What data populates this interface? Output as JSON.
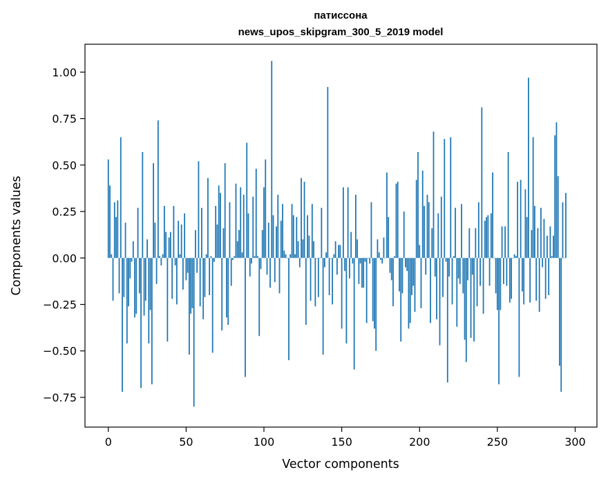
{
  "chart_data": {
    "type": "bar",
    "title": "патиссона",
    "subtitle": "news_upos_skipgram_300_5_2019 model",
    "xlabel": "Vector components",
    "ylabel": "Components values",
    "xlim": [
      -15,
      314
    ],
    "ylim": [
      -0.91,
      1.15
    ],
    "xticks": [
      0,
      50,
      100,
      150,
      200,
      250,
      300
    ],
    "xtick_labels": [
      "0",
      "50",
      "100",
      "150",
      "200",
      "250",
      "300"
    ],
    "yticks": [
      -0.75,
      -0.5,
      -0.25,
      0.0,
      0.25,
      0.5,
      0.75,
      1.0
    ],
    "ytick_labels": [
      "−0.75",
      "−0.50",
      "−0.25",
      "0.00",
      "0.25",
      "0.50",
      "0.75",
      "1.00"
    ],
    "grid": false,
    "bar_color": "#1f77b4",
    "values": [
      0.53,
      0.39,
      0.02,
      -0.23,
      0.3,
      0.22,
      0.31,
      -0.19,
      0.65,
      -0.72,
      -0.21,
      0.19,
      -0.46,
      -0.26,
      -0.11,
      -0.02,
      0.09,
      -0.32,
      -0.3,
      0.27,
      -0.19,
      -0.7,
      0.57,
      -0.31,
      -0.23,
      0.1,
      -0.46,
      -0.28,
      -0.68,
      0.51,
      0.19,
      -0.14,
      0.74,
      0.01,
      -0.04,
      0.02,
      0.28,
      0.14,
      -0.45,
      0.11,
      0.14,
      -0.22,
      0.28,
      -0.04,
      -0.25,
      0.2,
      0.02,
      0.18,
      -0.17,
      0.24,
      -0.12,
      -0.08,
      -0.52,
      -0.3,
      -0.27,
      -0.8,
      0.15,
      -0.08,
      0.52,
      -0.26,
      0.27,
      -0.33,
      -0.21,
      0.02,
      0.43,
      -0.2,
      0.01,
      -0.51,
      -0.02,
      0.28,
      0.18,
      0.39,
      0.35,
      -0.39,
      0.16,
      0.51,
      -0.32,
      -0.36,
      0.3,
      -0.15,
      -0.01,
      0.01,
      0.4,
      0.09,
      0.15,
      0.38,
      0.03,
      0.34,
      -0.64,
      0.62,
      0.24,
      -0.1,
      -0.03,
      0.33,
      0.01,
      0.48,
      0.01,
      -0.42,
      -0.06,
      0.15,
      0.38,
      0.53,
      -0.09,
      0.19,
      -0.16,
      1.06,
      0.23,
      -0.13,
      0.17,
      0.34,
      -0.19,
      0.2,
      0.29,
      0.04,
      0.02,
      0.0,
      -0.55,
      0.02,
      0.29,
      0.23,
      0.02,
      0.22,
      0.09,
      -0.05,
      0.43,
      0.1,
      0.41,
      -0.36,
      0.23,
      0.12,
      -0.23,
      0.29,
      0.09,
      -0.26,
      0.0,
      -0.21,
      0.0,
      0.27,
      -0.52,
      -0.05,
      0.03,
      0.92,
      -0.2,
      0.0,
      -0.25,
      0.02,
      0.09,
      -0.09,
      0.07,
      0.07,
      -0.38,
      0.38,
      -0.07,
      -0.46,
      0.38,
      -0.11,
      0.14,
      -0.03,
      -0.6,
      0.34,
      0.1,
      -0.14,
      -0.03,
      -0.16,
      -0.16,
      -0.02,
      -0.35,
      0.0,
      -0.03,
      0.3,
      -0.34,
      -0.38,
      -0.5,
      0.1,
      0.03,
      -0.01,
      -0.03,
      0.11,
      0.0,
      0.46,
      0.22,
      -0.08,
      -0.12,
      -0.26,
      0.01,
      0.4,
      0.41,
      -0.18,
      -0.45,
      -0.19,
      0.25,
      -0.05,
      -0.07,
      -0.38,
      -0.35,
      -0.2,
      -0.15,
      -0.29,
      0.42,
      0.57,
      0.07,
      -0.27,
      0.47,
      0.28,
      -0.09,
      0.34,
      0.3,
      -0.35,
      0.16,
      0.68,
      -0.1,
      -0.33,
      0.24,
      -0.47,
      0.33,
      -0.21,
      0.64,
      -0.02,
      -0.67,
      -0.1,
      0.65,
      -0.25,
      0.01,
      0.27,
      -0.37,
      -0.11,
      -0.14,
      0.29,
      -0.19,
      -0.44,
      -0.56,
      -0.12,
      0.16,
      -0.43,
      -0.09,
      -0.45,
      0.16,
      -0.26,
      0.3,
      -0.15,
      0.81,
      -0.3,
      0.2,
      0.22,
      0.23,
      -0.15,
      0.24,
      0.46,
      0.0,
      -0.19,
      -0.28,
      -0.68,
      -0.28,
      0.17,
      -0.14,
      0.17,
      -0.15,
      0.57,
      -0.24,
      -0.22,
      0.0,
      0.02,
      0.01,
      0.41,
      -0.64,
      0.42,
      -0.18,
      -0.25,
      0.37,
      0.22,
      0.97,
      -0.24,
      0.15,
      0.65,
      0.28,
      -0.23,
      0.16,
      -0.29,
      0.27,
      -0.05,
      0.21,
      -0.22,
      0.12,
      -0.2,
      0.17,
      0.01,
      0.12,
      0.66,
      0.73,
      0.44,
      -0.58,
      -0.72,
      0.3,
      0.0,
      0.35
    ]
  }
}
